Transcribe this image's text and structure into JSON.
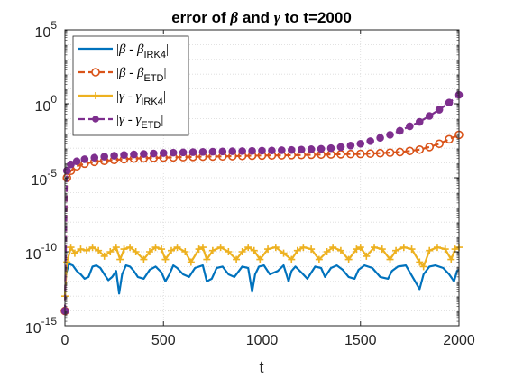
{
  "chart_data": {
    "type": "line",
    "title": {
      "prefix": "error of ",
      "beta": "β",
      "middle": " and ",
      "gamma": "γ",
      "suffix": " to t=2000"
    },
    "xlabel": "t",
    "ylabel": "",
    "xlim": [
      0,
      2000
    ],
    "ylim": [
      1e-15,
      100000.0
    ],
    "yscale": "log",
    "grid": true,
    "legend_position": "top-left",
    "x_ticks": [
      {
        "value": 0,
        "label": "0"
      },
      {
        "value": 500,
        "label": "500"
      },
      {
        "value": 1000,
        "label": "1000"
      },
      {
        "value": 1500,
        "label": "1500"
      },
      {
        "value": 2000,
        "label": "2000"
      }
    ],
    "y_ticks": [
      {
        "exp": -15,
        "base": "10",
        "power": "-15"
      },
      {
        "exp": -10,
        "base": "10",
        "power": "-10"
      },
      {
        "exp": -5,
        "base": "10",
        "power": "-5"
      },
      {
        "exp": 0,
        "base": "10",
        "power": "0"
      },
      {
        "exp": 5,
        "base": "10",
        "power": "5"
      }
    ],
    "series": [
      {
        "name": "|β - β_IRK4|",
        "legend": {
          "var": "β",
          "op": " - ",
          "sub": "IRK4"
        },
        "color": "#0072BD",
        "style": "solid",
        "marker": "none",
        "x": [
          0,
          5,
          20,
          40,
          60,
          80,
          100,
          120,
          140,
          160,
          180,
          200,
          220,
          240,
          260,
          275,
          290,
          310,
          330,
          350,
          370,
          400,
          430,
          460,
          490,
          510,
          530,
          550,
          570,
          600,
          630,
          660,
          700,
          720,
          745,
          770,
          800,
          830,
          860,
          900,
          930,
          950,
          965,
          985,
          1010,
          1040,
          1080,
          1110,
          1135,
          1150,
          1170,
          1200,
          1230,
          1270,
          1300,
          1320,
          1350,
          1380,
          1410,
          1440,
          1470,
          1490,
          1520,
          1560,
          1600,
          1640,
          1660,
          1690,
          1730,
          1770,
          1800,
          1820,
          1850,
          1880,
          1920,
          1950,
          1975,
          1990,
          2000
        ],
        "y": [
          1e-13,
          3e-12,
          1.5e-11,
          1.2e-11,
          5e-12,
          3e-12,
          1.5e-12,
          2e-12,
          1e-11,
          1.2e-11,
          8e-12,
          3e-12,
          1.2e-12,
          2e-12,
          5e-12,
          1.5e-13,
          3e-12,
          1.2e-11,
          1e-11,
          5e-12,
          2e-12,
          1.5e-12,
          6e-12,
          1e-11,
          4e-12,
          1e-12,
          3e-12,
          1.2e-11,
          8e-12,
          3e-12,
          2e-12,
          8e-12,
          1.2e-11,
          1e-12,
          1.5e-12,
          8e-12,
          1e-11,
          3e-12,
          2e-12,
          1e-11,
          8e-12,
          2e-13,
          3e-12,
          1e-11,
          1.2e-11,
          3e-12,
          5e-12,
          1.2e-11,
          1e-12,
          5e-12,
          1e-11,
          4e-12,
          1.5e-12,
          1e-11,
          8e-12,
          2e-12,
          8e-12,
          1.2e-11,
          6e-12,
          2e-12,
          1.5e-12,
          6e-12,
          1.2e-11,
          8e-12,
          2e-12,
          1.5e-12,
          5e-12,
          1e-11,
          1.2e-11,
          1.5e-12,
          3e-13,
          3e-12,
          1e-11,
          1.2e-11,
          8e-12,
          3e-12,
          1e-12,
          5e-12,
          6e-12
        ]
      },
      {
        "name": "|β - β_ETD|",
        "legend": {
          "var": "β",
          "op": " - ",
          "sub": "ETD"
        },
        "color": "#D95319",
        "style": "dashed",
        "marker": "circle-open",
        "x": [
          0,
          10,
          30,
          60,
          100,
          150,
          200,
          250,
          300,
          350,
          400,
          450,
          500,
          550,
          600,
          650,
          700,
          750,
          800,
          850,
          900,
          950,
          1000,
          1050,
          1100,
          1150,
          1200,
          1250,
          1300,
          1350,
          1400,
          1450,
          1500,
          1550,
          1600,
          1650,
          1700,
          1750,
          1800,
          1850,
          1900,
          1950,
          2000
        ],
        "y": [
          1e-14,
          1e-05,
          3e-05,
          6e-05,
          9e-05,
          0.00012,
          0.00014,
          0.00016,
          0.00018,
          0.0002,
          0.00021,
          0.00022,
          0.00023,
          0.00024,
          0.00025,
          0.00026,
          0.00027,
          0.000275,
          0.00028,
          0.00029,
          0.0003,
          0.00031,
          0.00032,
          0.000325,
          0.00033,
          0.00034,
          0.00035,
          0.00036,
          0.00037,
          0.00038,
          0.00039,
          0.0004,
          0.00041,
          0.00043,
          0.00046,
          0.0005,
          0.00055,
          0.00065,
          0.0008,
          0.0012,
          0.002,
          0.004,
          0.008
        ]
      },
      {
        "name": "|γ - γ_IRK4|",
        "legend": {
          "var": "γ",
          "op": " - ",
          "sub": "IRK4"
        },
        "color": "#EDB120",
        "style": "solid",
        "marker": "plus",
        "x": [
          0,
          10,
          30,
          50,
          80,
          110,
          140,
          170,
          200,
          230,
          260,
          280,
          300,
          330,
          360,
          400,
          430,
          460,
          490,
          510,
          540,
          570,
          610,
          640,
          680,
          700,
          720,
          750,
          790,
          830,
          870,
          900,
          930,
          960,
          990,
          1030,
          1070,
          1110,
          1150,
          1180,
          1210,
          1250,
          1290,
          1330,
          1360,
          1400,
          1440,
          1480,
          1500,
          1530,
          1570,
          1610,
          1650,
          1680,
          1720,
          1760,
          1800,
          1820,
          1850,
          1890,
          1930,
          1960,
          1980,
          2000
        ],
        "y": [
          1e-13,
          2e-11,
          2e-10,
          8e-11,
          1.5e-10,
          1.2e-10,
          2e-10,
          1.2e-10,
          5e-11,
          1e-10,
          2e-10,
          3e-11,
          1.5e-10,
          2e-10,
          1e-10,
          3e-11,
          1e-10,
          2e-10,
          1.5e-10,
          3e-11,
          1.2e-10,
          2e-10,
          1e-10,
          2e-11,
          1.5e-10,
          2e-10,
          3e-11,
          1.2e-10,
          2e-10,
          1e-10,
          3e-11,
          1e-10,
          2e-10,
          1.2e-10,
          3e-11,
          1.5e-10,
          2e-10,
          8e-11,
          3e-11,
          1.2e-10,
          2e-10,
          1.5e-10,
          3e-11,
          1e-10,
          2e-10,
          1.2e-10,
          3e-11,
          1.5e-10,
          2e-10,
          5e-11,
          2e-10,
          1.5e-10,
          3e-11,
          1.2e-10,
          2e-10,
          1.5e-10,
          2e-11,
          1e-11,
          1.2e-10,
          2e-10,
          1.5e-10,
          3e-11,
          1.5e-10,
          2e-10
        ]
      },
      {
        "name": "|γ - γ_ETD|",
        "legend": {
          "var": "γ",
          "op": " - ",
          "sub": "ETD"
        },
        "color": "#7E2F8E",
        "style": "dashed",
        "marker": "circle-filled",
        "x": [
          0,
          10,
          30,
          60,
          100,
          150,
          200,
          250,
          300,
          350,
          400,
          450,
          500,
          550,
          600,
          650,
          700,
          750,
          800,
          850,
          900,
          950,
          1000,
          1050,
          1100,
          1150,
          1200,
          1250,
          1300,
          1350,
          1400,
          1450,
          1500,
          1550,
          1600,
          1650,
          1700,
          1750,
          1800,
          1850,
          1900,
          1950,
          2000
        ],
        "y": [
          1e-14,
          3e-05,
          8e-05,
          0.00013,
          0.00018,
          0.00023,
          0.00027,
          0.00031,
          0.00035,
          0.00038,
          0.00041,
          0.00044,
          0.00047,
          0.0005,
          0.00052,
          0.00054,
          0.00056,
          0.00058,
          0.0006,
          0.00062,
          0.00064,
          0.00066,
          0.00068,
          0.0007,
          0.00073,
          0.00076,
          0.0008,
          0.00085,
          0.0009,
          0.001,
          0.0012,
          0.0015,
          0.002,
          0.003,
          0.005,
          0.008,
          0.015,
          0.03,
          0.06,
          0.15,
          0.4,
          1.2,
          4
        ]
      }
    ]
  }
}
